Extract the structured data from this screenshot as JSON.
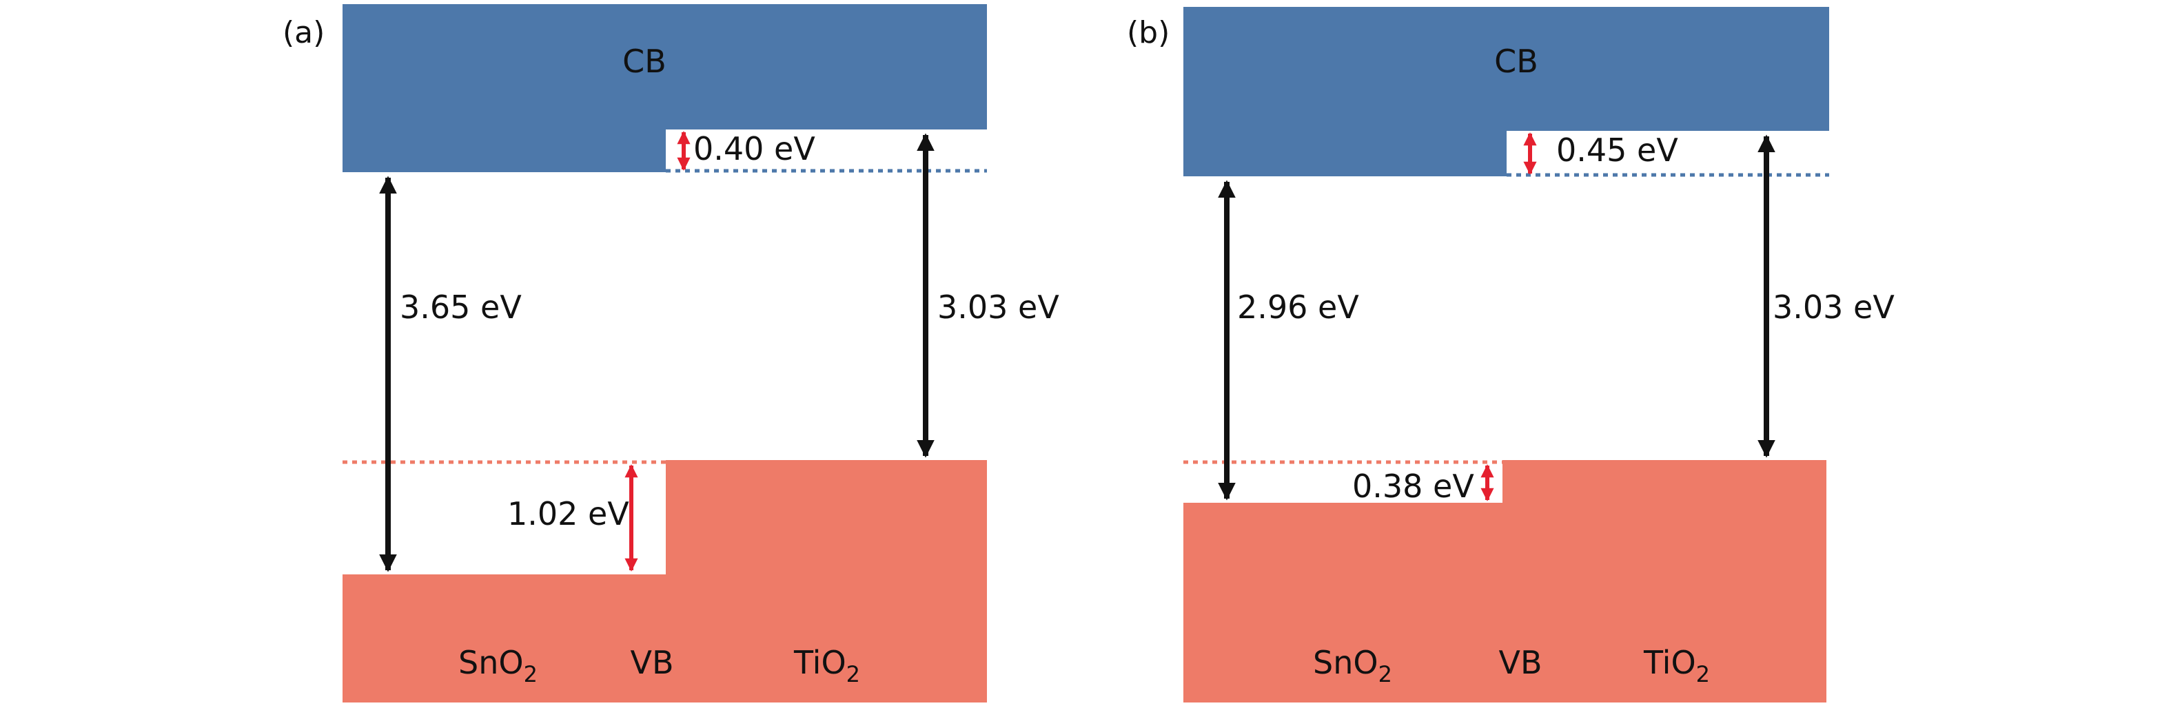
{
  "panels": [
    {
      "label": "(a)",
      "cb_label": "CB",
      "vb_label": "VB",
      "materials": {
        "left": {
          "name": "SnO",
          "subscript": "2"
        },
        "right": {
          "name": "TiO",
          "subscript": "2"
        }
      },
      "offsets": {
        "cb": "0.40 eV",
        "vb": "1.02 eV"
      },
      "band_gaps": {
        "left": "3.65 eV",
        "right": "3.03 eV"
      }
    },
    {
      "label": "(b)",
      "cb_label": "CB",
      "vb_label": "VB",
      "materials": {
        "left": {
          "name": "SnO",
          "subscript": "2"
        },
        "right": {
          "name": "TiO",
          "subscript": "2"
        }
      },
      "offsets": {
        "cb": "0.45 eV",
        "vb": "0.38 eV"
      },
      "band_gaps": {
        "left": "2.96 eV",
        "right": "3.03 eV"
      }
    }
  ],
  "colors": {
    "conduction_band": "#4d78aa",
    "valence_band": "#ee7b68",
    "gap_arrow": "#111111",
    "offset_arrow": "#e5202f",
    "cb_dotted_line": "#4d78aa",
    "vb_dotted_line": "#ee7b68"
  }
}
